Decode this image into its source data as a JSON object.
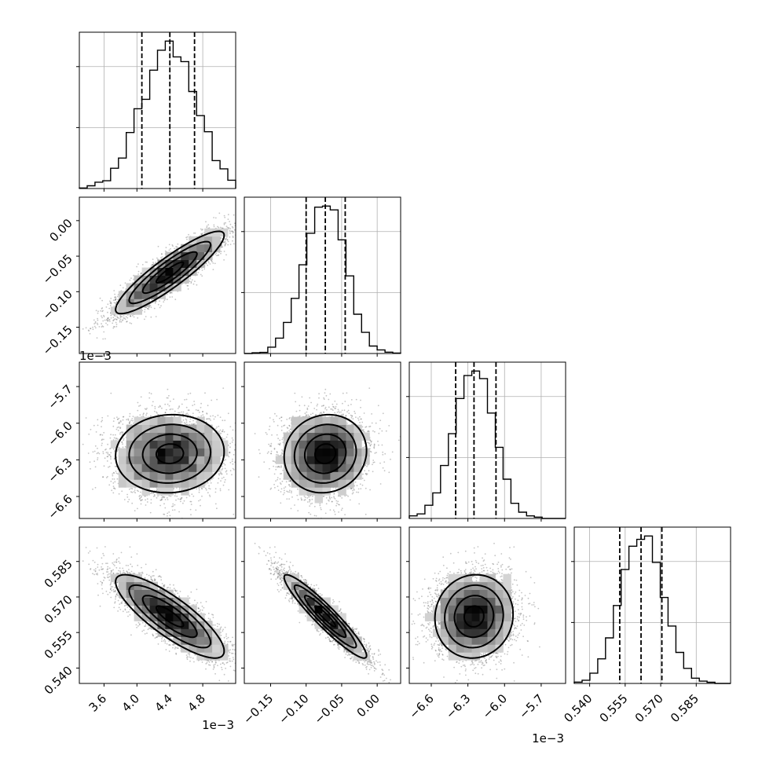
{
  "chart_data": {
    "type": "corner",
    "parameters": [
      {
        "range": [
          3.3,
          5.2
        ],
        "ticks": [
          3.6,
          4.0,
          4.4,
          4.8
        ],
        "tick_labels": [
          "3.6",
          "4.0",
          "4.4",
          "4.8"
        ],
        "offset_text": "1e−3",
        "mean": 4.4,
        "sd": 0.33,
        "quantiles": [
          4.06,
          4.4,
          4.7
        ]
      },
      {
        "range": [
          -0.187,
          0.033
        ],
        "ticks": [
          -0.15,
          -0.1,
          -0.05,
          0.0
        ],
        "tick_labels": [
          "−0.15",
          "−0.10",
          "−0.05",
          "0.00"
        ],
        "offset_text": "1e−3",
        "mean": -0.073,
        "sd": 0.029,
        "quantiles": [
          -0.1,
          -0.073,
          -0.045
        ]
      },
      {
        "range": [
          -6.78,
          -5.5
        ],
        "ticks": [
          -6.6,
          -6.3,
          -6.0,
          -5.7
        ],
        "tick_labels": [
          "−6.6",
          "−6.3",
          "−6.0",
          "−5.7"
        ],
        "offset_text": "1e−3",
        "mean": -6.25,
        "sd": 0.16,
        "quantiles": [
          -6.4,
          -6.25,
          -6.07
        ]
      },
      {
        "range": [
          0.5335,
          0.5995
        ],
        "ticks": [
          0.54,
          0.555,
          0.57,
          0.585
        ],
        "tick_labels": [
          "0.540",
          "0.555",
          "0.570",
          "0.585"
        ],
        "offset_text": "",
        "mean": 0.5618,
        "sd": 0.0088,
        "quantiles": [
          0.5527,
          0.5617,
          0.5705
        ]
      }
    ],
    "correlations": [
      [
        1.0,
        0.9,
        0.05,
        -0.83
      ],
      [
        0.9,
        1.0,
        0.08,
        -0.94
      ],
      [
        0.05,
        0.08,
        1.0,
        0.05
      ],
      [
        -0.83,
        -0.94,
        0.05,
        1.0
      ]
    ],
    "histogram_y_ticks": 2,
    "grid": true,
    "colors": {
      "hist_line": "#000000",
      "quantile_line": "#000000",
      "contour": "#000000",
      "points": "#555555",
      "grid": "#b0b0b0"
    }
  }
}
